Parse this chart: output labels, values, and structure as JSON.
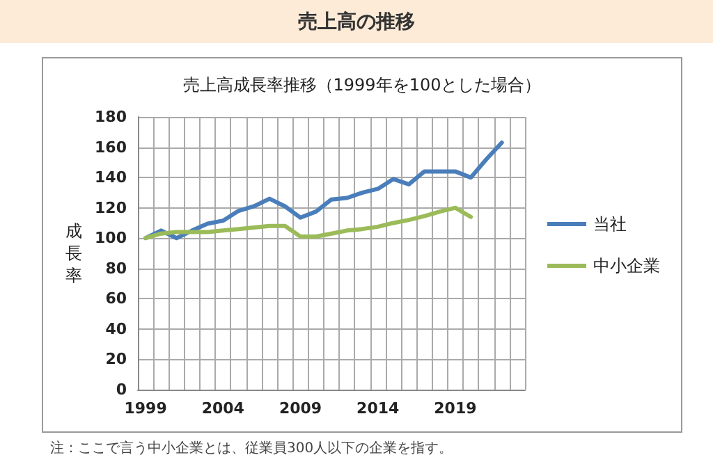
{
  "chart_data": {
    "type": "line",
    "title": "売上高の推移",
    "subtitle": "売上高成長率推移（1999年を100とした場合）",
    "ylabel": "成長率",
    "categories": [
      "1999",
      null,
      null,
      null,
      null,
      "2004",
      null,
      null,
      null,
      null,
      "2009",
      null,
      null,
      null,
      null,
      "2014",
      null,
      null,
      null,
      null,
      "2019",
      null,
      null,
      null,
      null
    ],
    "series": [
      {
        "name": "当社",
        "color": "#4a7ebb",
        "values": [
          100,
          105,
          100,
          105,
          109.5,
          111.5,
          118,
          121,
          126,
          121,
          113.5,
          117.5,
          125.5,
          126.5,
          130,
          132.5,
          139,
          135.5,
          144,
          144,
          144,
          140,
          152,
          163,
          null
        ]
      },
      {
        "name": "中小企業",
        "color": "#9bbb59",
        "values": [
          100,
          103,
          104,
          104,
          104,
          105,
          106,
          107,
          108,
          108,
          101,
          101,
          103,
          105,
          106,
          107.5,
          110,
          112,
          114.5,
          117.5,
          120,
          114,
          null,
          null,
          null
        ]
      }
    ],
    "ylim": [
      0,
      180
    ],
    "yticks": [
      0,
      20,
      40,
      60,
      80,
      100,
      120,
      140,
      160,
      180
    ],
    "grid": true,
    "legend": "right",
    "marker": "none",
    "line_style": "solid",
    "annotations": [
      "注：ここで言う中小企業とは、従業員300人以下の企業を指す。"
    ]
  }
}
